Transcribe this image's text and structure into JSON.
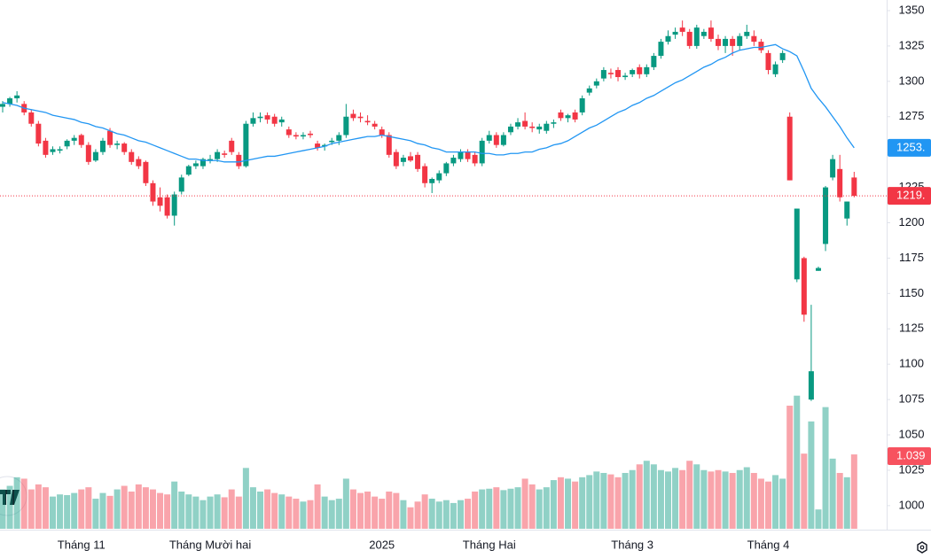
{
  "chart_data": {
    "type": "candlestick",
    "up_color": "#089981",
    "down_color": "#f23645",
    "ma_color": "#2196f3",
    "ylim": [
      983,
      1357.5
    ],
    "yticks": [
      1000,
      1025,
      1050,
      1075,
      1100,
      1125,
      1150,
      1175,
      1200,
      1225,
      1250,
      1275,
      1300,
      1325,
      1350
    ],
    "categories": [
      null,
      null,
      null,
      null,
      null,
      null,
      null,
      null,
      null,
      null,
      null,
      "Tháng 11",
      null,
      null,
      null,
      null,
      null,
      null,
      null,
      null,
      null,
      null,
      null,
      null,
      null,
      null,
      null,
      null,
      null,
      "Tháng Mười hai",
      null,
      null,
      null,
      null,
      null,
      null,
      null,
      null,
      null,
      null,
      null,
      null,
      null,
      null,
      null,
      null,
      null,
      null,
      null,
      null,
      null,
      null,
      null,
      "2025",
      null,
      null,
      null,
      null,
      null,
      null,
      null,
      null,
      null,
      null,
      null,
      null,
      null,
      null,
      "Tháng Hai",
      null,
      null,
      null,
      null,
      null,
      null,
      null,
      null,
      null,
      null,
      null,
      null,
      null,
      null,
      null,
      null,
      null,
      null,
      null,
      "Tháng 3",
      null,
      null,
      null,
      null,
      null,
      null,
      null,
      null,
      null,
      null,
      null,
      null,
      null,
      null,
      null,
      null,
      null,
      null,
      "Tháng 4",
      null,
      null,
      null,
      null,
      null,
      null,
      null,
      null,
      null,
      null,
      null,
      null
    ],
    "open": [
      1282,
      1284,
      1288,
      1284,
      1278,
      1270,
      1258,
      1250,
      1251,
      1254,
      1258,
      1262,
      1255,
      1244,
      1250,
      1265,
      1255,
      1256,
      1250,
      1245,
      1243,
      1228,
      1218,
      1218,
      1205,
      1222,
      1234,
      1240,
      1240,
      1244,
      1245,
      1249,
      1258,
      1248,
      1240,
      1270,
      1274,
      1276,
      1275,
      1271,
      1266,
      1262,
      1261,
      1263,
      1256,
      1254,
      1257,
      1258,
      1262,
      1277,
      1275,
      1272,
      1270,
      1266,
      1262,
      1250,
      1243,
      1247,
      1248,
      1240,
      1228,
      1230,
      1235,
      1242,
      1245,
      1250,
      1248,
      1242,
      1258,
      1262,
      1255,
      1264,
      1268,
      1272,
      1268,
      1266,
      1265,
      1270,
      1278,
      1274,
      1278,
      1278,
      1292,
      1297,
      1302,
      1306,
      1308,
      1303,
      1305,
      1310,
      1305,
      1310,
      1318,
      1328,
      1333,
      1338,
      1335,
      1325,
      1332,
      1338,
      1330,
      1325,
      1330,
      1325,
      1332,
      1332,
      1328,
      1320,
      1305,
      1315,
      1275,
      1160,
      1175,
      1075,
      1166,
      1185,
      1232,
      1238,
      1203,
      1232
    ],
    "high": [
      1286,
      1289,
      1293,
      1286,
      1280,
      1272,
      1260,
      1254,
      1254,
      1259,
      1262,
      1263,
      1257,
      1252,
      1260,
      1267,
      1258,
      1257,
      1252,
      1247,
      1244,
      1230,
      1225,
      1220,
      1222,
      1234,
      1241,
      1244,
      1246,
      1248,
      1252,
      1251,
      1260,
      1250,
      1272,
      1278,
      1278,
      1278,
      1277,
      1275,
      1268,
      1264,
      1264,
      1265,
      1258,
      1256,
      1260,
      1264,
      1284,
      1280,
      1278,
      1276,
      1272,
      1268,
      1264,
      1252,
      1248,
      1250,
      1250,
      1242,
      1232,
      1237,
      1243,
      1248,
      1252,
      1252,
      1250,
      1260,
      1265,
      1264,
      1264,
      1270,
      1274,
      1278,
      1271,
      1270,
      1272,
      1273,
      1280,
      1277,
      1280,
      1290,
      1297,
      1302,
      1310,
      1309,
      1310,
      1306,
      1309,
      1312,
      1312,
      1320,
      1330,
      1336,
      1338,
      1343,
      1337,
      1340,
      1337,
      1343,
      1333,
      1332,
      1332,
      1334,
      1340,
      1336,
      1330,
      1322,
      1314,
      1322,
      1278,
      1210,
      1176,
      1142,
      1169,
      1226,
      1248,
      1248,
      1215,
      1236
    ],
    "low": [
      1278,
      1282,
      1285,
      1276,
      1268,
      1254,
      1246,
      1248,
      1249,
      1252,
      1255,
      1253,
      1241,
      1243,
      1248,
      1253,
      1252,
      1248,
      1241,
      1238,
      1226,
      1212,
      1208,
      1203,
      1198,
      1220,
      1233,
      1238,
      1238,
      1242,
      1243,
      1246,
      1248,
      1238,
      1239,
      1268,
      1271,
      1270,
      1268,
      1268,
      1260,
      1259,
      1259,
      1260,
      1251,
      1251,
      1255,
      1255,
      1260,
      1272,
      1271,
      1269,
      1266,
      1260,
      1246,
      1238,
      1240,
      1243,
      1236,
      1225,
      1221,
      1228,
      1233,
      1240,
      1243,
      1243,
      1240,
      1240,
      1256,
      1253,
      1254,
      1262,
      1266,
      1266,
      1264,
      1263,
      1263,
      1267,
      1272,
      1271,
      1271,
      1276,
      1290,
      1295,
      1300,
      1302,
      1300,
      1301,
      1303,
      1302,
      1303,
      1308,
      1316,
      1326,
      1330,
      1332,
      1323,
      1323,
      1330,
      1328,
      1322,
      1320,
      1318,
      1322,
      1330,
      1325,
      1320,
      1305,
      1303,
      1313,
      1230,
      1158,
      1130,
      1074,
      1166,
      1180,
      1230,
      1215,
      1198,
      1218
    ],
    "close": [
      1284,
      1288,
      1290,
      1278,
      1270,
      1256,
      1248,
      1252,
      1252,
      1258,
      1260,
      1255,
      1243,
      1250,
      1258,
      1255,
      1256,
      1250,
      1243,
      1240,
      1228,
      1215,
      1212,
      1205,
      1220,
      1232,
      1240,
      1242,
      1245,
      1245,
      1250,
      1248,
      1250,
      1240,
      1270,
      1274,
      1275,
      1273,
      1270,
      1273,
      1262,
      1261,
      1262,
      1262,
      1253,
      1255,
      1258,
      1262,
      1275,
      1274,
      1274,
      1271,
      1268,
      1262,
      1248,
      1240,
      1246,
      1244,
      1238,
      1228,
      1231,
      1235,
      1242,
      1246,
      1250,
      1245,
      1242,
      1258,
      1262,
      1255,
      1262,
      1268,
      1271,
      1268,
      1267,
      1268,
      1270,
      1271,
      1274,
      1276,
      1273,
      1288,
      1295,
      1300,
      1308,
      1305,
      1303,
      1304,
      1308,
      1305,
      1310,
      1318,
      1328,
      1332,
      1335,
      1335,
      1325,
      1338,
      1335,
      1330,
      1325,
      1330,
      1325,
      1332,
      1335,
      1328,
      1322,
      1308,
      1312,
      1320,
      1230,
      1210,
      1135,
      1095,
      1168,
      1225,
      1245,
      1218,
      1215,
      1219
    ],
    "volume": [
      0.55,
      0.6,
      0.72,
      0.7,
      0.55,
      0.62,
      0.58,
      0.45,
      0.48,
      0.47,
      0.5,
      0.55,
      0.58,
      0.42,
      0.5,
      0.46,
      0.55,
      0.6,
      0.52,
      0.62,
      0.58,
      0.55,
      0.5,
      0.48,
      0.66,
      0.52,
      0.48,
      0.45,
      0.4,
      0.45,
      0.48,
      0.44,
      0.55,
      0.45,
      0.85,
      0.58,
      0.52,
      0.55,
      0.5,
      0.48,
      0.45,
      0.42,
      0.38,
      0.4,
      0.62,
      0.45,
      0.4,
      0.42,
      0.7,
      0.55,
      0.5,
      0.52,
      0.45,
      0.42,
      0.52,
      0.5,
      0.4,
      0.3,
      0.38,
      0.48,
      0.42,
      0.38,
      0.4,
      0.36,
      0.4,
      0.42,
      0.52,
      0.55,
      0.56,
      0.58,
      0.54,
      0.56,
      0.58,
      0.7,
      0.62,
      0.55,
      0.58,
      0.68,
      0.72,
      0.7,
      0.66,
      0.72,
      0.75,
      0.8,
      0.78,
      0.76,
      0.72,
      0.78,
      0.82,
      0.9,
      0.95,
      0.9,
      0.82,
      0.8,
      0.85,
      0.82,
      0.95,
      0.9,
      0.82,
      0.8,
      0.82,
      0.8,
      0.78,
      0.82,
      0.86,
      0.78,
      0.7,
      0.66,
      0.75,
      0.7,
      1.72,
      1.86,
      1.05,
      1.5,
      0.27,
      1.7,
      0.98,
      0.78,
      0.72,
      1.039
    ],
    "ma_values": [
      1285,
      1284,
      1283,
      1281,
      1280,
      1279,
      1278,
      1276,
      1275,
      1274,
      1273,
      1271,
      1270,
      1268,
      1267,
      1265,
      1263,
      1262,
      1260,
      1258,
      1257,
      1255,
      1253,
      1251,
      1249,
      1247,
      1245,
      1245,
      1244,
      1244,
      1244,
      1243,
      1243,
      1243,
      1244,
      1245,
      1246,
      1247,
      1247,
      1248,
      1249,
      1250,
      1251,
      1252,
      1253,
      1254,
      1256,
      1257,
      1258,
      1259,
      1260,
      1261,
      1261,
      1262,
      1261,
      1260,
      1259,
      1258,
      1256,
      1255,
      1253,
      1252,
      1250,
      1250,
      1250,
      1250,
      1250,
      1249,
      1249,
      1248,
      1248,
      1249,
      1249,
      1250,
      1250,
      1252,
      1253,
      1255,
      1256,
      1258,
      1261,
      1264,
      1267,
      1269,
      1272,
      1275,
      1278,
      1280,
      1283,
      1285,
      1288,
      1290,
      1293,
      1296,
      1299,
      1301,
      1304,
      1307,
      1310,
      1312,
      1315,
      1317,
      1320,
      1322,
      1323,
      1324,
      1324,
      1325,
      1326,
      1323,
      1321,
      1318,
      1307,
      1295,
      1288,
      1282,
      1275,
      1268,
      1260,
      1253
    ],
    "ma_last": {
      "value": 1253,
      "label": "1253."
    },
    "last_price": {
      "value": 1219,
      "label": "1219."
    },
    "volume_last": {
      "value": 1.039,
      "label": "1.039"
    }
  }
}
